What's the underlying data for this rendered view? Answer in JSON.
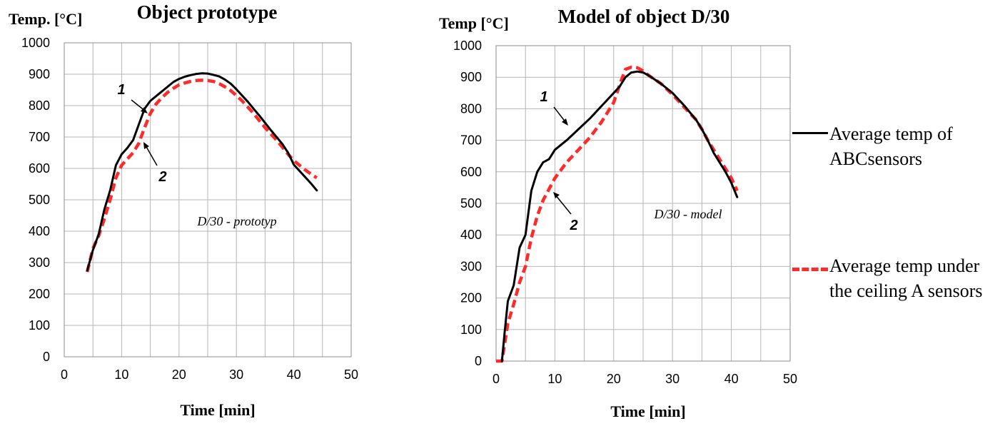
{
  "chart_data": [
    {
      "type": "line",
      "title": "Object prototype",
      "ylabel": "Temp. [°C]",
      "xlabel": "Time [min]",
      "annotation": "D/30 - prototyp",
      "curve_labels": [
        "1",
        "2"
      ],
      "xlim": [
        0,
        50
      ],
      "ylim": [
        0,
        1000
      ],
      "xticks": [
        0,
        10,
        20,
        30,
        40,
        50
      ],
      "yticks": [
        0,
        100,
        200,
        300,
        400,
        500,
        600,
        700,
        800,
        900,
        1000
      ],
      "grid": true,
      "series": [
        {
          "name": "Average temp of ABCsensors",
          "color": "#000000",
          "points": [
            [
              4,
              275
            ],
            [
              5,
              340
            ],
            [
              6,
              390
            ],
            [
              7,
              470
            ],
            [
              8,
              530
            ],
            [
              9,
              610
            ],
            [
              10,
              645
            ],
            [
              11,
              665
            ],
            [
              12,
              690
            ],
            [
              13,
              740
            ],
            [
              14,
              790
            ],
            [
              15,
              815
            ],
            [
              16,
              830
            ],
            [
              17,
              845
            ],
            [
              18,
              860
            ],
            [
              19,
              875
            ],
            [
              20,
              885
            ],
            [
              21,
              892
            ],
            [
              22,
              897
            ],
            [
              23,
              901
            ],
            [
              24,
              903
            ],
            [
              25,
              902
            ],
            [
              26,
              898
            ],
            [
              27,
              893
            ],
            [
              28,
              883
            ],
            [
              29,
              870
            ],
            [
              30,
              852
            ],
            [
              31,
              832
            ],
            [
              32,
              812
            ],
            [
              33,
              790
            ],
            [
              34,
              768
            ],
            [
              35,
              745
            ],
            [
              36,
              722
            ],
            [
              37,
              700
            ],
            [
              38,
              678
            ],
            [
              39,
              650
            ],
            [
              40,
              612
            ],
            [
              41,
              592
            ],
            [
              42,
              572
            ],
            [
              43,
              552
            ],
            [
              44,
              530
            ]
          ]
        },
        {
          "name": "Average temp under the ceiling A sensors",
          "color": "#ff2a2a",
          "points": [
            [
              4,
              270
            ],
            [
              5,
              345
            ],
            [
              6,
              385
            ],
            [
              7,
              440
            ],
            [
              8,
              500
            ],
            [
              9,
              570
            ],
            [
              10,
              610
            ],
            [
              11,
              630
            ],
            [
              12,
              650
            ],
            [
              13,
              680
            ],
            [
              14,
              730
            ],
            [
              15,
              775
            ],
            [
              16,
              805
            ],
            [
              17,
              825
            ],
            [
              18,
              842
            ],
            [
              19,
              855
            ],
            [
              20,
              866
            ],
            [
              21,
              872
            ],
            [
              22,
              877
            ],
            [
              23,
              880
            ],
            [
              24,
              881
            ],
            [
              25,
              880
            ],
            [
              26,
              877
            ],
            [
              27,
              870
            ],
            [
              28,
              860
            ],
            [
              29,
              848
            ],
            [
              30,
              832
            ],
            [
              31,
              815
            ],
            [
              32,
              795
            ],
            [
              33,
              775
            ],
            [
              34,
              752
            ],
            [
              35,
              730
            ],
            [
              36,
              710
            ],
            [
              37,
              690
            ],
            [
              38,
              668
            ],
            [
              39,
              645
            ],
            [
              40,
              625
            ],
            [
              41,
              610
            ],
            [
              42,
              595
            ],
            [
              43,
              582
            ],
            [
              44,
              570
            ]
          ]
        }
      ]
    },
    {
      "type": "line",
      "title": "Model of object D/30",
      "ylabel": "Temp [°C]",
      "xlabel": "Time [min]",
      "annotation": "D/30 - model",
      "curve_labels": [
        "1",
        "2"
      ],
      "xlim": [
        0,
        50
      ],
      "ylim": [
        0,
        1000
      ],
      "xticks": [
        0,
        10,
        20,
        30,
        40,
        50
      ],
      "yticks": [
        0,
        100,
        200,
        300,
        400,
        500,
        600,
        700,
        800,
        900,
        1000
      ],
      "grid": true,
      "series": [
        {
          "name": "Average temp of ABCsensors",
          "color": "#000000",
          "points": [
            [
              1,
              0
            ],
            [
              1.5,
              100
            ],
            [
              2,
              190
            ],
            [
              3,
              240
            ],
            [
              4,
              360
            ],
            [
              5,
              400
            ],
            [
              6,
              540
            ],
            [
              7,
              600
            ],
            [
              8,
              630
            ],
            [
              9,
              640
            ],
            [
              10,
              670
            ],
            [
              12,
              700
            ],
            [
              14,
              735
            ],
            [
              16,
              770
            ],
            [
              18,
              810
            ],
            [
              20,
              850
            ],
            [
              21,
              870
            ],
            [
              22,
              900
            ],
            [
              23,
              915
            ],
            [
              24,
              918
            ],
            [
              25,
              915
            ],
            [
              26,
              905
            ],
            [
              28,
              880
            ],
            [
              30,
              850
            ],
            [
              32,
              810
            ],
            [
              34,
              765
            ],
            [
              35,
              735
            ],
            [
              36,
              700
            ],
            [
              37,
              660
            ],
            [
              38,
              630
            ],
            [
              39,
              600
            ],
            [
              40,
              565
            ],
            [
              41,
              520
            ]
          ]
        },
        {
          "name": "Average temp under the ceiling A sensors",
          "color": "#ff2a2a",
          "points": [
            [
              0,
              0
            ],
            [
              1,
              0
            ],
            [
              1.5,
              60
            ],
            [
              2,
              120
            ],
            [
              3,
              180
            ],
            [
              4,
              250
            ],
            [
              5,
              300
            ],
            [
              6,
              390
            ],
            [
              7,
              460
            ],
            [
              8,
              510
            ],
            [
              9,
              545
            ],
            [
              10,
              580
            ],
            [
              12,
              630
            ],
            [
              14,
              670
            ],
            [
              16,
              710
            ],
            [
              18,
              760
            ],
            [
              20,
              820
            ],
            [
              21,
              875
            ],
            [
              22,
              925
            ],
            [
              23,
              932
            ],
            [
              24,
              930
            ],
            [
              25,
              920
            ],
            [
              26,
              905
            ],
            [
              28,
              880
            ],
            [
              30,
              845
            ],
            [
              32,
              805
            ],
            [
              34,
              765
            ],
            [
              35,
              735
            ],
            [
              36,
              700
            ],
            [
              37,
              670
            ],
            [
              38,
              640
            ],
            [
              39,
              610
            ],
            [
              40,
              580
            ],
            [
              41,
              540
            ]
          ]
        }
      ]
    }
  ],
  "legend": {
    "items": [
      {
        "label": "Average temp of ABCsensors",
        "style": "solid",
        "color": "#000000"
      },
      {
        "label": "Average temp under the ceiling A sensors",
        "style": "dashed",
        "color": "#ff2a2a"
      }
    ]
  }
}
